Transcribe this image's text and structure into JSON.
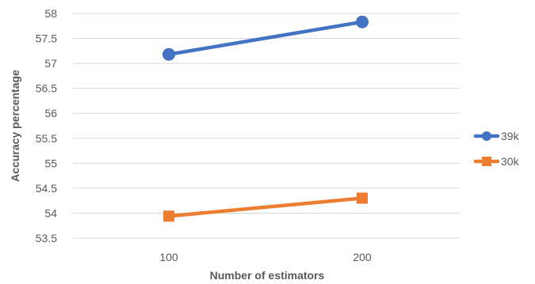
{
  "chart_data": {
    "type": "line",
    "title": "",
    "xlabel": "Number of estimators",
    "ylabel": "Accuracy percentage",
    "categories": [
      "100",
      "200"
    ],
    "ylim": [
      53.5,
      58
    ],
    "ystep": 0.5,
    "yticks": [
      "53.5",
      "54",
      "54.5",
      "55",
      "55.5",
      "56",
      "56.5",
      "57",
      "57.5",
      "58"
    ],
    "grid": true,
    "legend_position": "right",
    "series": [
      {
        "name": "39k",
        "values": [
          57.18,
          57.83
        ],
        "color": "#4472C4",
        "marker": "circle"
      },
      {
        "name": "30k",
        "values": [
          53.94,
          54.3
        ],
        "color": "#ED7D31",
        "marker": "square"
      }
    ]
  }
}
